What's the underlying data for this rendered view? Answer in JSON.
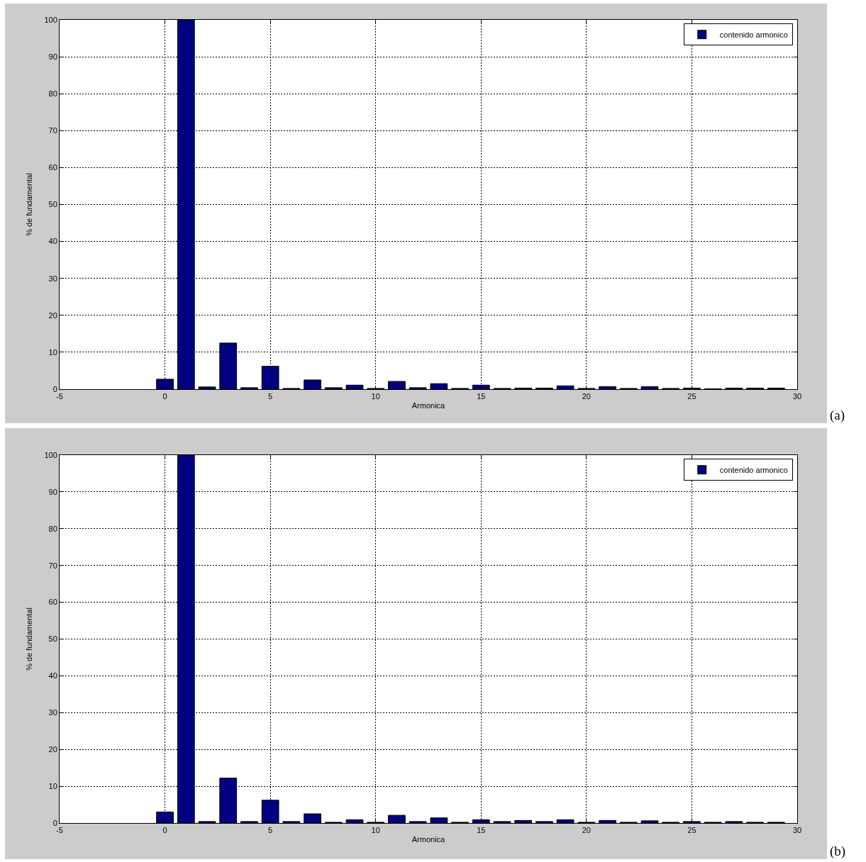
{
  "chart_data": [
    {
      "type": "bar",
      "x": [
        0,
        1,
        2,
        3,
        4,
        5,
        6,
        7,
        8,
        9,
        10,
        11,
        12,
        13,
        14,
        15,
        16,
        17,
        18,
        19,
        20,
        21,
        22,
        23,
        24,
        25,
        26,
        27,
        28,
        29
      ],
      "series": [
        {
          "name": "contenido armonico",
          "color": "#000080",
          "values": [
            2.7,
            100,
            0.6,
            12.5,
            0.4,
            6.2,
            0.2,
            2.5,
            0.4,
            1.1,
            0.2,
            2.1,
            0.4,
            1.5,
            0.2,
            1.1,
            0.2,
            0.3,
            0.3,
            0.9,
            0.2,
            0.7,
            0.2,
            0.7,
            0.2,
            0.3,
            0.1,
            0.3,
            0.3,
            0.3
          ]
        }
      ],
      "xlabel": "Armonica",
      "ylabel": "% de fundamental",
      "xlim": [
        -5,
        30
      ],
      "xticks": [
        -5,
        0,
        5,
        10,
        15,
        20,
        25,
        30
      ],
      "ylim": [
        0,
        100
      ],
      "yticks": [
        0,
        10,
        20,
        30,
        40,
        50,
        60,
        70,
        80,
        90,
        100
      ],
      "grid": true,
      "legend": "top right",
      "annotations": [
        "(a)"
      ]
    },
    {
      "type": "bar",
      "x": [
        0,
        1,
        2,
        3,
        4,
        5,
        6,
        7,
        8,
        9,
        10,
        11,
        12,
        13,
        14,
        15,
        16,
        17,
        18,
        19,
        20,
        21,
        22,
        23,
        24,
        25,
        26,
        27,
        28,
        29
      ],
      "series": [
        {
          "name": "contenido armonico",
          "color": "#000080",
          "values": [
            3.0,
            100,
            0.4,
            12.2,
            0.4,
            6.2,
            0.4,
            2.5,
            0.2,
            0.9,
            0.2,
            2.1,
            0.4,
            1.4,
            0.2,
            0.9,
            0.4,
            0.7,
            0.4,
            0.9,
            0.2,
            0.7,
            0.2,
            0.6,
            0.2,
            0.4,
            0.2,
            0.4,
            0.2,
            0.2
          ]
        }
      ],
      "xlabel": "Armonica",
      "ylabel": "% de fundamental",
      "xlim": [
        -5,
        30
      ],
      "xticks": [
        -5,
        0,
        5,
        10,
        15,
        20,
        25,
        30
      ],
      "ylim": [
        0,
        100
      ],
      "yticks": [
        0,
        10,
        20,
        30,
        40,
        50,
        60,
        70,
        80,
        90,
        100
      ],
      "grid": true,
      "legend": "top right",
      "annotations": [
        "(b)"
      ]
    }
  ]
}
